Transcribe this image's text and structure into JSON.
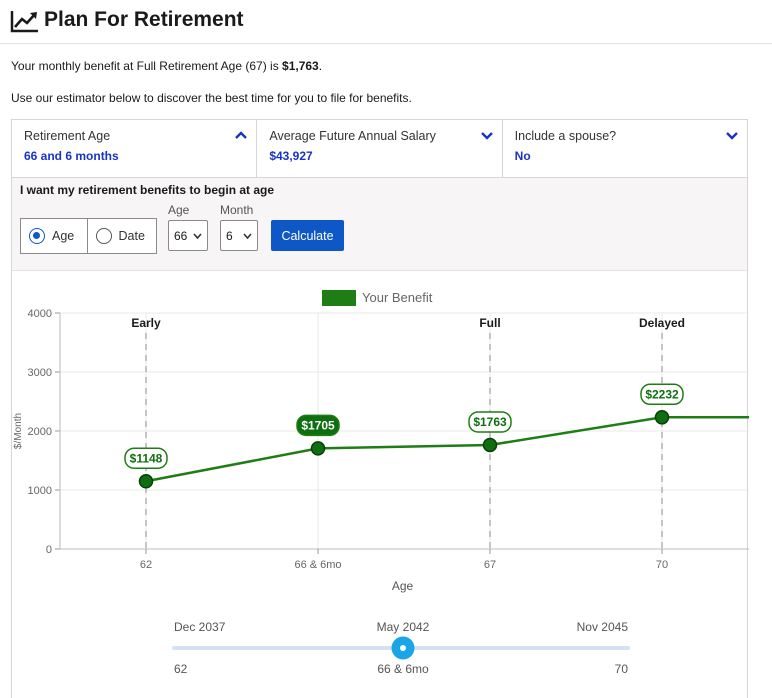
{
  "header": {
    "title": "Plan For Retirement",
    "icon": "trend-line-icon"
  },
  "intro": {
    "benefit_prefix": "Your monthly benefit at Full Retirement Age (67) is ",
    "benefit_amount": "$1,763",
    "benefit_suffix": ".",
    "instructions": "Use our estimator below to discover the best time for you to file for benefits."
  },
  "tabs": [
    {
      "label": "Retirement Age",
      "value": "66 and 6 months",
      "chevron": "up"
    },
    {
      "label": "Average Future Annual Salary",
      "value": "$43,927",
      "chevron": "down"
    },
    {
      "label": "Include a spouse?",
      "value": "No",
      "chevron": "down"
    }
  ],
  "form": {
    "prompt": "I want my retirement benefits to begin at age",
    "mode_options": [
      {
        "label": "Age",
        "checked": true
      },
      {
        "label": "Date",
        "checked": false
      }
    ],
    "age_label": "Age",
    "age_value": "66",
    "month_label": "Month",
    "month_value": "6",
    "calculate_label": "Calculate"
  },
  "colors": {
    "accent_blue": "#0d57c7",
    "link_blue": "#1a33c7",
    "benefit_green": "#1e7d14",
    "marker_green": "#0f6e0f",
    "slider_thumb": "#1aa6e6"
  },
  "chart_data": {
    "type": "line",
    "legend": [
      "Your Benefit"
    ],
    "ylabel": "$/Month",
    "xlabel": "Age",
    "ylim": [
      0,
      4000
    ],
    "yticks": [
      "0",
      "1000",
      "2000",
      "3000",
      "4000"
    ],
    "x_tick_labels": [
      "62",
      "66 & 6mo",
      "67",
      "70"
    ],
    "grid": true,
    "milestones": [
      {
        "label": "Early",
        "x": 62
      },
      {
        "label": "Full",
        "x": 67
      },
      {
        "label": "Delayed",
        "x": 70
      }
    ],
    "series": [
      {
        "name": "Your Benefit",
        "points": [
          {
            "age_label": "62",
            "value": 1148,
            "label": "$1148",
            "highlight": false
          },
          {
            "age_label": "66 & 6mo",
            "value": 1705,
            "label": "$1705",
            "highlight": true
          },
          {
            "age_label": "67",
            "value": 1763,
            "label": "$1763",
            "highlight": false
          },
          {
            "age_label": "70",
            "value": 2232,
            "label": "$2232",
            "highlight": false
          }
        ],
        "continues_after_last": true
      }
    ]
  },
  "slider": {
    "start_date": "Dec 2037",
    "current_date": "May 2042",
    "end_date": "Nov 2045",
    "start_age": "62",
    "current_age": "66 & 6mo",
    "end_age": "70",
    "position_fraction": 0.5
  }
}
